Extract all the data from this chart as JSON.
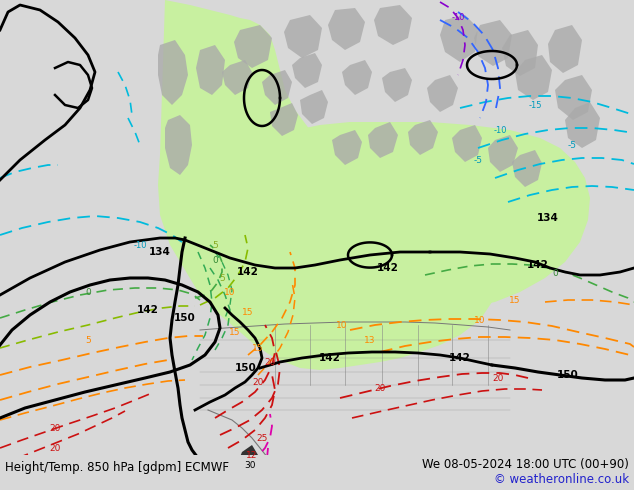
{
  "title_left": "Height/Temp. 850 hPa [gdpm] ECMWF",
  "title_right": "We 08-05-2024 18:00 UTC (00+90)",
  "copyright": "© weatheronline.co.uk",
  "bg_color": "#d8d8d8",
  "fig_width": 6.34,
  "fig_height": 4.9,
  "dpi": 100,
  "text_color_left": "#000000",
  "text_color_right": "#000000",
  "text_color_copyright": "#2222cc",
  "font_size_footer": 8.5
}
